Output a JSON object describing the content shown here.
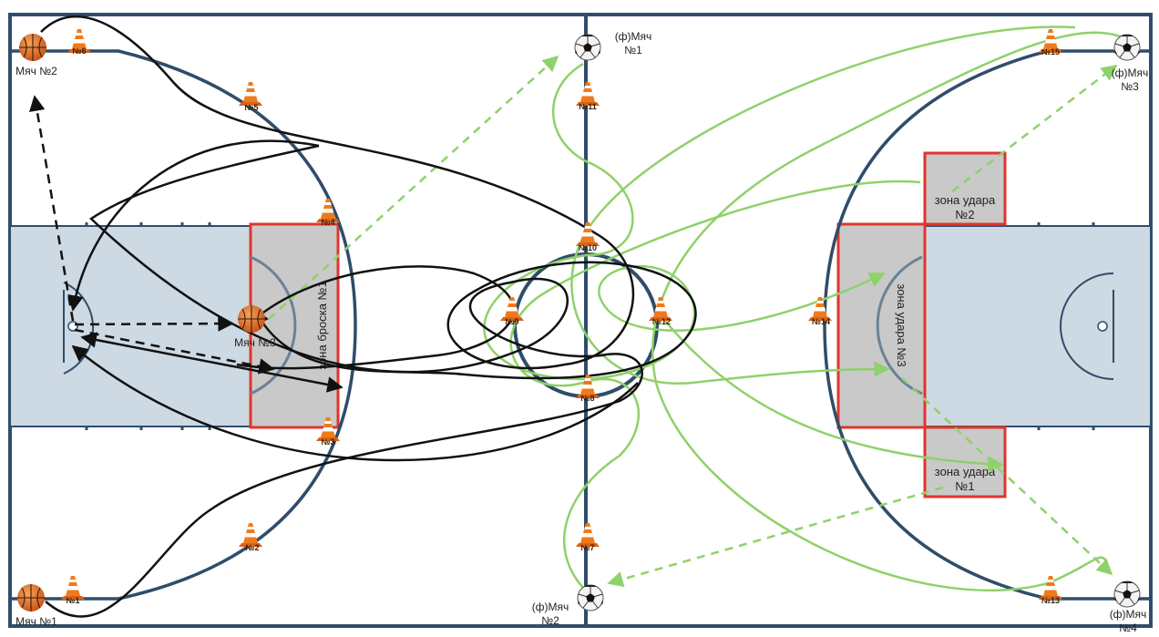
{
  "colors": {
    "court_line": "#2f4d6b",
    "key_fill": "#cdd9e3",
    "zone_fill": "#c9c9c9",
    "zone_stroke": "#e0352b",
    "path_black": "#111111",
    "path_green": "#8fd16a",
    "cone": "#f07a1a"
  },
  "balls": {
    "ball_1": "Мяч №1",
    "ball_2": "Мяч №2",
    "ball_3": "Мяч №3",
    "fball_1_line1": "(ф)Мяч",
    "fball_1_line2": "№1",
    "fball_2_line1": "(ф)Мяч",
    "fball_2_line2": "№2",
    "fball_3_line1": "(ф)Мяч",
    "fball_3_line2": "№3",
    "fball_4_line1": "(ф)Мяч",
    "fball_4_line2": "№4"
  },
  "cones": {
    "c1": "№1",
    "c2": "№2",
    "c3": "№3",
    "c4": "№4",
    "c5": "№5",
    "c6": "№6",
    "c7": "№7",
    "c8": "№8",
    "c9": "№9",
    "c10": "№10",
    "c11": "№11",
    "c12": "№12",
    "c13": "№13",
    "c14": "№14",
    "c15": "№15"
  },
  "zones": {
    "throw_zone_1": "зона броска №1",
    "kick_zone_1_line1": "зона удара",
    "kick_zone_1_line2": "№1",
    "kick_zone_2_line1": "зона удара",
    "kick_zone_2_line2": "№2",
    "kick_zone_3": "зона удара №3"
  }
}
